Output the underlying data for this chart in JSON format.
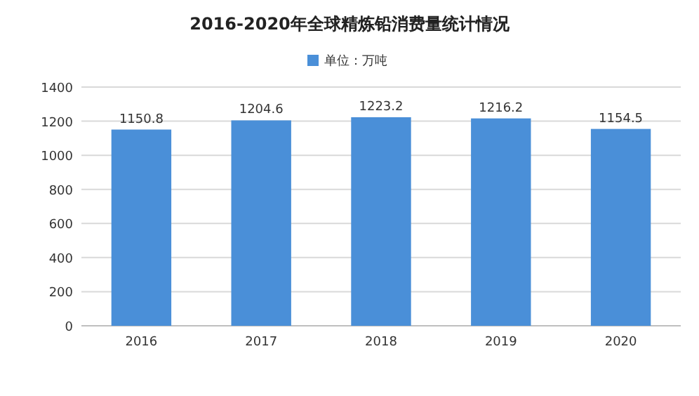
{
  "chart_data": {
    "type": "bar",
    "title": "2016-2020年全球精炼铅消费量统计情况",
    "categories": [
      "2016",
      "2017",
      "2018",
      "2019",
      "2020"
    ],
    "series": [
      {
        "name": "单位：万吨",
        "color": "#4a8fd8",
        "values": [
          1150.8,
          1204.6,
          1223.2,
          1216.2,
          1154.5
        ]
      }
    ],
    "ylim": [
      0,
      1400
    ],
    "yticks": [
      0,
      200,
      400,
      600,
      800,
      1000,
      1200,
      1400
    ],
    "grid": "y",
    "legend": "top",
    "data_labels": true
  }
}
